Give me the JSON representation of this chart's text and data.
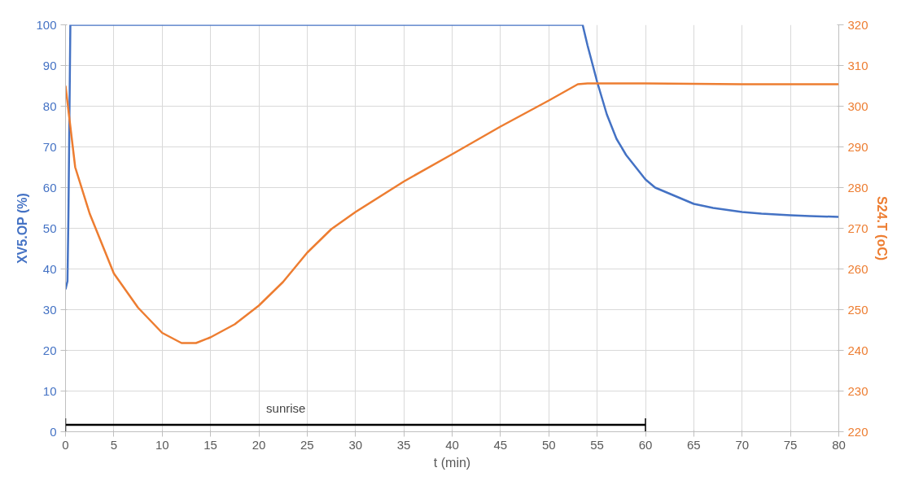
{
  "chart_data": {
    "type": "line",
    "xlabel": "t (min)",
    "ylabel": "XV5.OP (%)",
    "y2label": "S24.T (oC)",
    "xlim": [
      0,
      80
    ],
    "xticks": [
      0,
      5,
      10,
      15,
      20,
      25,
      30,
      35,
      40,
      45,
      50,
      55,
      60,
      65,
      70,
      75,
      80
    ],
    "ylim": [
      0,
      100
    ],
    "yticks": [
      0,
      10,
      20,
      30,
      40,
      50,
      60,
      70,
      80,
      90,
      100
    ],
    "y2lim": [
      220,
      320
    ],
    "y2ticks": [
      220,
      230,
      240,
      250,
      260,
      270,
      280,
      290,
      300,
      310,
      320
    ],
    "grid": true,
    "marker": "none",
    "line_style": "solid",
    "series": [
      {
        "color": "#4472c4",
        "x": [
          0,
          0.2,
          0.3,
          0.5,
          10,
          20,
          30,
          40,
          50,
          53.5,
          54,
          55,
          56,
          57,
          58,
          59,
          60,
          61,
          62,
          63,
          65,
          67,
          70,
          72,
          75,
          77,
          80
        ],
        "values": [
          35,
          37,
          53,
          100,
          100,
          100,
          100,
          100,
          100,
          100,
          95,
          86,
          78,
          72,
          68,
          65,
          62,
          60,
          59,
          58,
          56,
          55,
          54,
          53.6,
          53.2,
          53,
          52.8
        ]
      },
      {
        "color": "#000000",
        "x": [
          0,
          60
        ],
        "values": [
          1.7,
          1.7
        ]
      },
      {
        "color": "#ed7d31",
        "axis": "y2",
        "x": [
          0,
          0.5,
          1,
          2.5,
          5,
          7.5,
          10,
          12,
          13.5,
          15,
          17.5,
          20,
          22.5,
          25,
          27.5,
          30,
          35,
          40,
          45,
          50,
          53,
          54,
          60,
          70,
          80
        ],
        "values": [
          305,
          295,
          285,
          273.6,
          258.9,
          250.5,
          244.3,
          241.8,
          241.8,
          243.2,
          246.4,
          251,
          256.8,
          264,
          269.8,
          274,
          281.5,
          288.2,
          295,
          301.4,
          305.4,
          305.6,
          305.6,
          305.4,
          305.4
        ]
      }
    ],
    "annotations": [
      "sunrise"
    ]
  }
}
